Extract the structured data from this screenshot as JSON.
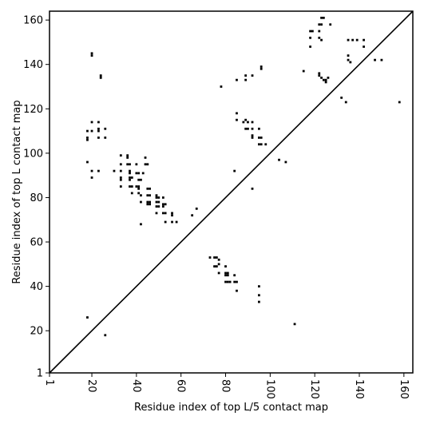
{
  "chart_data": {
    "type": "scatter",
    "xlabel": "Residue index of top L/5 contact map",
    "ylabel": "Residue index of top L contact map",
    "xlim": [
      1,
      164
    ],
    "ylim": [
      1,
      164
    ],
    "x_ticks": [
      1,
      20,
      40,
      60,
      80,
      100,
      120,
      140,
      160
    ],
    "y_ticks": [
      1,
      20,
      40,
      60,
      80,
      100,
      120,
      140,
      160
    ],
    "x_tick_labels": [
      "1",
      "20",
      "40",
      "60",
      "80",
      "100",
      "120",
      "140",
      "160"
    ],
    "y_tick_labels": [
      "1",
      "20",
      "40",
      "60",
      "80",
      "100",
      "120",
      "140",
      "160"
    ],
    "grid": false,
    "diagonal": true,
    "series": [
      {
        "points": [
          [
            20,
            145
          ],
          [
            20,
            144
          ],
          [
            24,
            135
          ],
          [
            24,
            134
          ],
          [
            78,
            130
          ],
          [
            85,
            133
          ],
          [
            89,
            133
          ],
          [
            89,
            135
          ],
          [
            92,
            135
          ],
          [
            96,
            139
          ],
          [
            96,
            138
          ],
          [
            115,
            137
          ],
          [
            118,
            148
          ],
          [
            118,
            152
          ],
          [
            118,
            155
          ],
          [
            119,
            155
          ],
          [
            122,
            158
          ],
          [
            123,
            158
          ],
          [
            123,
            161
          ],
          [
            124,
            161
          ],
          [
            127,
            158
          ],
          [
            122,
            155
          ],
          [
            122,
            152
          ],
          [
            123,
            151
          ],
          [
            122,
            136
          ],
          [
            122,
            135
          ],
          [
            123,
            134
          ],
          [
            124,
            133
          ],
          [
            125,
            133
          ],
          [
            125,
            132
          ],
          [
            126,
            134
          ],
          [
            132,
            125
          ],
          [
            134,
            123
          ],
          [
            135,
            151
          ],
          [
            137,
            151
          ],
          [
            139,
            151
          ],
          [
            135,
            144
          ],
          [
            135,
            142
          ],
          [
            136,
            141
          ],
          [
            142,
            151
          ],
          [
            142,
            148
          ],
          [
            147,
            142
          ],
          [
            150,
            142
          ],
          [
            158,
            123
          ],
          [
            85,
            118
          ],
          [
            85,
            115
          ],
          [
            88,
            114
          ],
          [
            89,
            115
          ],
          [
            90,
            114
          ],
          [
            92,
            114
          ],
          [
            89,
            111
          ],
          [
            90,
            111
          ],
          [
            92,
            111
          ],
          [
            95,
            111
          ],
          [
            92,
            108
          ],
          [
            92,
            107
          ],
          [
            95,
            107
          ],
          [
            96,
            107
          ],
          [
            95,
            104
          ],
          [
            96,
            104
          ],
          [
            98,
            104
          ],
          [
            104,
            97
          ],
          [
            107,
            96
          ],
          [
            18,
            110
          ],
          [
            18,
            107
          ],
          [
            18,
            106
          ],
          [
            20,
            114
          ],
          [
            23,
            114
          ],
          [
            20,
            110
          ],
          [
            23,
            111
          ],
          [
            23,
            110
          ],
          [
            26,
            111
          ],
          [
            23,
            107
          ],
          [
            26,
            107
          ],
          [
            18,
            96
          ],
          [
            20,
            92
          ],
          [
            20,
            89
          ],
          [
            23,
            92
          ],
          [
            30,
            92
          ],
          [
            33,
            92
          ],
          [
            33,
            99
          ],
          [
            33,
            95
          ],
          [
            33,
            89
          ],
          [
            33,
            88
          ],
          [
            33,
            85
          ],
          [
            36,
            99
          ],
          [
            36,
            98
          ],
          [
            36,
            95
          ],
          [
            37,
            95
          ],
          [
            37,
            92
          ],
          [
            37,
            91
          ],
          [
            37,
            89
          ],
          [
            38,
            89
          ],
          [
            37,
            88
          ],
          [
            37,
            85
          ],
          [
            38,
            85
          ],
          [
            38,
            82
          ],
          [
            40,
            95
          ],
          [
            40,
            91
          ],
          [
            41,
            91
          ],
          [
            43,
            91
          ],
          [
            41,
            88
          ],
          [
            42,
            88
          ],
          [
            40,
            85
          ],
          [
            41,
            85
          ],
          [
            41,
            84
          ],
          [
            41,
            82
          ],
          [
            42,
            81
          ],
          [
            42,
            78
          ],
          [
            42,
            68
          ],
          [
            44,
            98
          ],
          [
            44,
            95
          ],
          [
            45,
            95
          ],
          [
            45,
            84
          ],
          [
            46,
            84
          ],
          [
            45,
            81
          ],
          [
            46,
            81
          ],
          [
            45,
            78
          ],
          [
            46,
            78
          ],
          [
            45,
            77
          ],
          [
            46,
            77
          ],
          [
            49,
            81
          ],
          [
            49,
            80
          ],
          [
            50,
            80
          ],
          [
            49,
            78
          ],
          [
            50,
            78
          ],
          [
            49,
            76
          ],
          [
            50,
            76
          ],
          [
            49,
            73
          ],
          [
            52,
            80
          ],
          [
            52,
            77
          ],
          [
            53,
            77
          ],
          [
            52,
            76
          ],
          [
            52,
            73
          ],
          [
            53,
            73
          ],
          [
            53,
            69
          ],
          [
            56,
            73
          ],
          [
            56,
            72
          ],
          [
            56,
            69
          ],
          [
            58,
            69
          ],
          [
            65,
            72
          ],
          [
            67,
            75
          ],
          [
            73,
            53
          ],
          [
            75,
            53
          ],
          [
            76,
            53
          ],
          [
            77,
            52
          ],
          [
            75,
            49
          ],
          [
            76,
            49
          ],
          [
            77,
            50
          ],
          [
            77,
            46
          ],
          [
            80,
            49
          ],
          [
            80,
            46
          ],
          [
            81,
            46
          ],
          [
            80,
            45
          ],
          [
            81,
            45
          ],
          [
            80,
            42
          ],
          [
            81,
            42
          ],
          [
            82,
            42
          ],
          [
            84,
            45
          ],
          [
            84,
            42
          ],
          [
            85,
            42
          ],
          [
            85,
            38
          ],
          [
            84,
            92
          ],
          [
            92,
            84
          ],
          [
            95,
            40
          ],
          [
            95,
            36
          ],
          [
            95,
            33
          ],
          [
            18,
            26
          ],
          [
            26,
            18
          ],
          [
            111,
            23
          ]
        ]
      }
    ]
  }
}
